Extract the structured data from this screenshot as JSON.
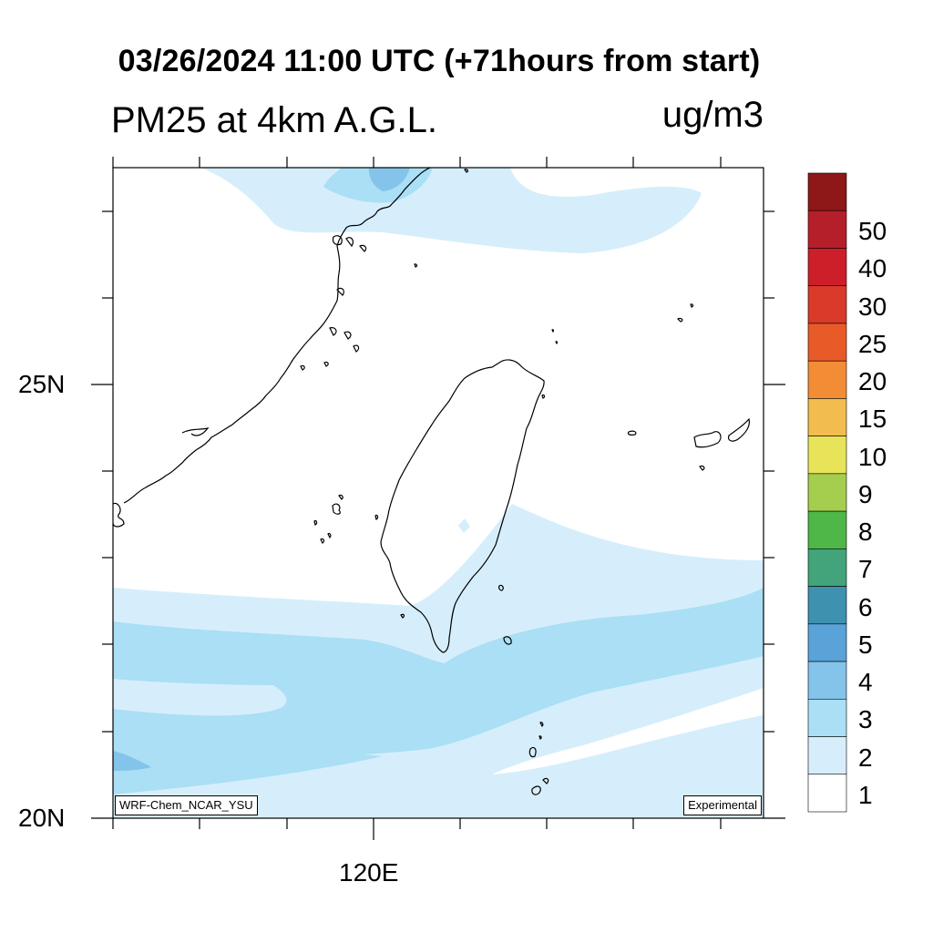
{
  "title": "03/26/2024 11:00 UTC (+71hours from start)",
  "subtitle": "PM25 at 4km A.G.L.",
  "units": "ug/m3",
  "axes": {
    "lat_ticks": [
      "25N",
      "20N"
    ],
    "lon_ticks": [
      "120E"
    ]
  },
  "legend": {
    "levels": [
      "1",
      "2",
      "3",
      "4",
      "5",
      "6",
      "7",
      "8",
      "9",
      "10",
      "15",
      "20",
      "25",
      "30",
      "40",
      "50"
    ],
    "colors": [
      "#ffffff",
      "#d6eefb",
      "#aadff5",
      "#84c3ea",
      "#5aa3d8",
      "#3f91b0",
      "#43a37a",
      "#4fb648",
      "#a5ce4f",
      "#e8e45a",
      "#f3bc4e",
      "#f38d35",
      "#e85b29",
      "#d93a2a",
      "#cc1f2a",
      "#b51f2a",
      "#8e1717"
    ]
  },
  "footnotes": {
    "model": "WRF-Chem_NCAR_YSU",
    "status": "Experimental"
  }
}
